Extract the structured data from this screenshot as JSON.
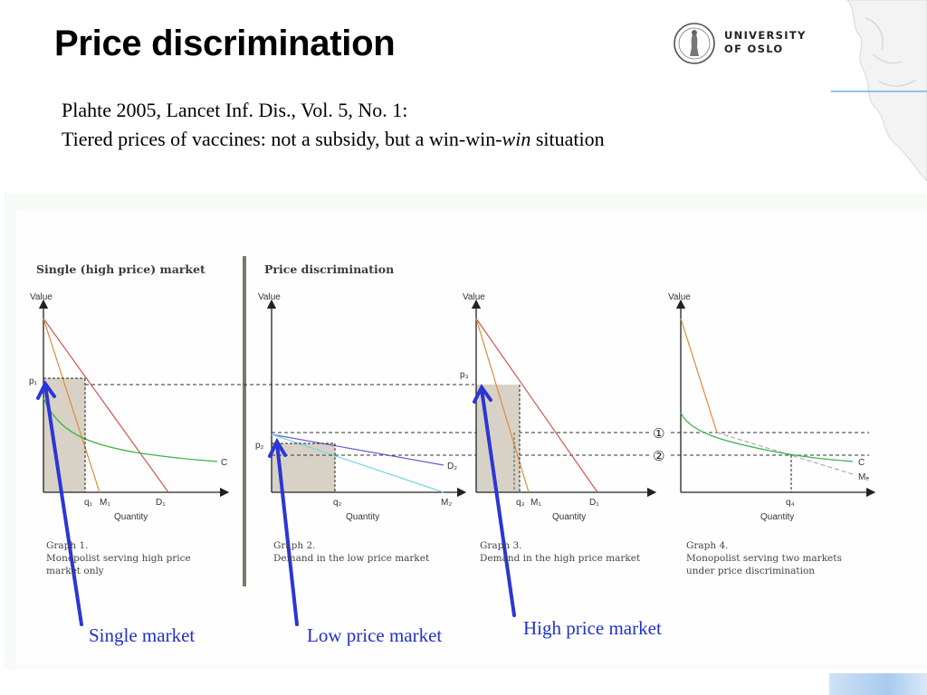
{
  "slide": {
    "title": "Price discrimination",
    "logo_lines": [
      "UNIVERSITY",
      "OF OSLO"
    ],
    "reference_line1": "Plahte 2005, Lancet Inf. Dis., Vol. 5, No. 1:",
    "reference_line2_prefix": "Tiered prices of vaccines: not a subsidy, but a win-win-",
    "reference_line2_italic": "win",
    "reference_line2_suffix": " situation"
  },
  "figure": {
    "left_heading": "Single (high price) market",
    "right_heading": "Price discrimination",
    "axis_value_label": "Value",
    "axis_quantity_label": "Quantity",
    "graphs": [
      {
        "caption": [
          "Graph 1.",
          "Monopolist serving high price",
          "market only"
        ],
        "price_label": "p₁",
        "tick_labels": [
          "q₁",
          "M₁",
          "D₁"
        ],
        "curve_labels": [
          "C"
        ]
      },
      {
        "caption": [
          "Graph 2.",
          "Demand in the low price market"
        ],
        "price_label": "p₂",
        "tick_labels": [
          "q₂",
          "M₂"
        ],
        "curve_labels": [
          "D₂"
        ]
      },
      {
        "caption": [
          "Graph 3.",
          "Demand in the high price market"
        ],
        "price_label": "p₃",
        "tick_labels": [
          "q₃",
          "M₁",
          "D₁"
        ],
        "curve_labels": []
      },
      {
        "caption": [
          "Graph 4.",
          "Monopolist serving two markets",
          "under price discrimination"
        ],
        "price_label": "",
        "tick_labels": [
          "q₄"
        ],
        "curve_labels": [
          "C",
          "Mₑ"
        ]
      }
    ],
    "markers": [
      "①",
      "②"
    ]
  },
  "annotations": {
    "single": "Single market",
    "low": "Low price market",
    "high": "High price market"
  },
  "colors": {
    "arrow": "#2b36d4",
    "shade": "#d8d2c6",
    "cost_curve": "#3bb54a",
    "marginal_revenue": "#e08a3c",
    "demand_high": "#d9534f",
    "demand_low": "#6a5acd",
    "marginal_low": "#7fd0e6"
  }
}
